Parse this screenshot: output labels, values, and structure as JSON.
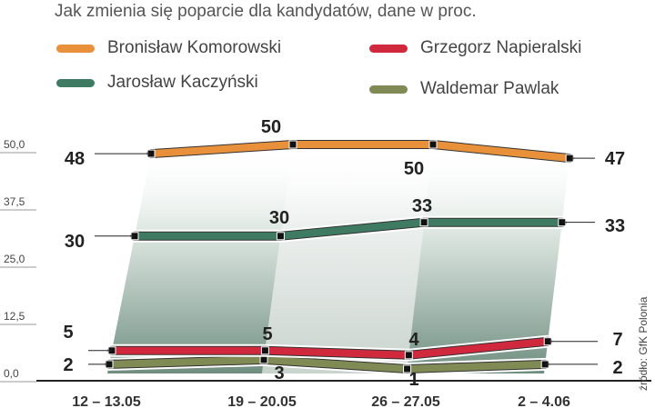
{
  "title": "Jak zmienia się poparcie dla kandydatów, dane w proc.",
  "source": "źródło: GfK Polonia",
  "legend": [
    {
      "name": "Bronisław Komorowski",
      "color": "#e8913a"
    },
    {
      "name": "Grzegorz Napieralski",
      "color": "#d0293e"
    },
    {
      "name": "Jarosław Kaczyński",
      "color": "#3f7a62"
    },
    {
      "name": "Waldemar Pawlak",
      "color": "#7f8a55"
    }
  ],
  "chart_data": {
    "type": "line",
    "title": "Jak zmienia się poparcie dla kandydatów, dane w proc.",
    "categories": [
      "12 – 13.05",
      "19 – 20.05",
      "26 – 27.05",
      "2 – 4.06"
    ],
    "y_ticks": [
      "0,0",
      "12,5",
      "25,0",
      "37,5",
      "50,0"
    ],
    "ylim": [
      0,
      50
    ],
    "series": [
      {
        "name": "Bronisław Komorowski",
        "color": "#e8913a",
        "values": [
          48,
          50,
          50,
          47
        ]
      },
      {
        "name": "Jarosław Kaczyński",
        "color": "#3f7a62",
        "values": [
          30,
          30,
          33,
          33
        ]
      },
      {
        "name": "Grzegorz Napieralski",
        "color": "#d0293e",
        "values": [
          5,
          5,
          4,
          7
        ]
      },
      {
        "name": "Waldemar Pawlak",
        "color": "#7f8a55",
        "values": [
          2,
          3,
          1,
          2
        ]
      }
    ],
    "legend_position": "top"
  }
}
